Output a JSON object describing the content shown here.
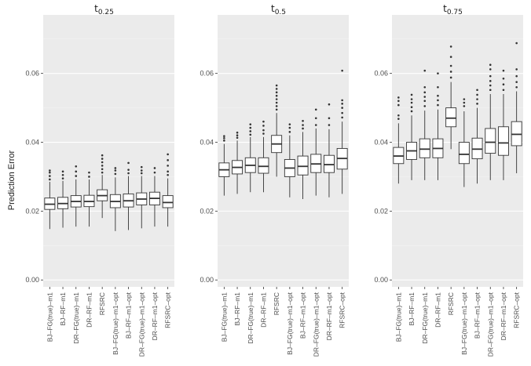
{
  "chart_data": {
    "type": "boxplot",
    "ylabel": "Prediction Error",
    "ylim": [
      -0.002,
      0.077
    ],
    "yticks": [
      0.0,
      0.02,
      0.04,
      0.06
    ],
    "ytick_labels": [
      "0.00",
      "0.02",
      "0.04",
      "0.06"
    ],
    "categories": [
      "BJ–FG(true)–m1",
      "BJ–RF–m1",
      "DR–FG(true)–m1",
      "DR–RF–m1",
      "RFSRC",
      "BJ–FG(true)–m1–opt",
      "BJ–RF–m1–opt",
      "DR–FG(true)–m1–opt",
      "DR–RF–m1–opt",
      "RFSRC–opt"
    ],
    "facets": [
      {
        "title_main": "t",
        "title_sub": "0.25",
        "boxes": [
          {
            "min": 0.0148,
            "q1": 0.0205,
            "median": 0.022,
            "q3": 0.0238,
            "max": 0.0285,
            "outliers": [
              0.0292,
              0.0302,
              0.0312,
              0.0318
            ]
          },
          {
            "min": 0.0152,
            "q1": 0.0207,
            "median": 0.0222,
            "q3": 0.024,
            "max": 0.0288,
            "outliers": [
              0.0295,
              0.0305,
              0.0315
            ]
          },
          {
            "min": 0.0155,
            "q1": 0.0212,
            "median": 0.0228,
            "q3": 0.0245,
            "max": 0.0292,
            "outliers": [
              0.0302,
              0.0315,
              0.033
            ]
          },
          {
            "min": 0.0155,
            "q1": 0.0213,
            "median": 0.0228,
            "q3": 0.0246,
            "max": 0.0292,
            "outliers": [
              0.03,
              0.0312
            ]
          },
          {
            "min": 0.018,
            "q1": 0.023,
            "median": 0.0245,
            "q3": 0.0262,
            "max": 0.0305,
            "outliers": [
              0.0312,
              0.0322,
              0.0332,
              0.0342,
              0.0352,
              0.0362
            ]
          },
          {
            "min": 0.0142,
            "q1": 0.021,
            "median": 0.0228,
            "q3": 0.0248,
            "max": 0.0298,
            "outliers": [
              0.0308,
              0.0318,
              0.0325
            ]
          },
          {
            "min": 0.0145,
            "q1": 0.0212,
            "median": 0.023,
            "q3": 0.025,
            "max": 0.0302,
            "outliers": [
              0.031,
              0.032,
              0.034
            ]
          },
          {
            "min": 0.015,
            "q1": 0.0218,
            "median": 0.0235,
            "q3": 0.0253,
            "max": 0.0302,
            "outliers": [
              0.031,
              0.0318,
              0.0328
            ]
          },
          {
            "min": 0.0155,
            "q1": 0.0218,
            "median": 0.0237,
            "q3": 0.0255,
            "max": 0.0302,
            "outliers": [
              0.0312,
              0.0325
            ]
          },
          {
            "min": 0.0155,
            "q1": 0.021,
            "median": 0.0225,
            "q3": 0.0245,
            "max": 0.0295,
            "outliers": [
              0.0305,
              0.0315,
              0.0332,
              0.0348,
              0.0365
            ]
          }
        ]
      },
      {
        "title_main": "t",
        "title_sub": "0.5",
        "boxes": [
          {
            "min": 0.0245,
            "q1": 0.03,
            "median": 0.032,
            "q3": 0.034,
            "max": 0.0395,
            "outliers": [
              0.0405,
              0.0412,
              0.0418
            ]
          },
          {
            "min": 0.025,
            "q1": 0.0308,
            "median": 0.0327,
            "q3": 0.0347,
            "max": 0.0405,
            "outliers": [
              0.0413,
              0.042,
              0.0428
            ]
          },
          {
            "min": 0.0255,
            "q1": 0.0312,
            "median": 0.0333,
            "q3": 0.0355,
            "max": 0.0415,
            "outliers": [
              0.0422,
              0.0432,
              0.0442,
              0.0452
            ]
          },
          {
            "min": 0.0255,
            "q1": 0.031,
            "median": 0.033,
            "q3": 0.0355,
            "max": 0.0415,
            "outliers": [
              0.0425,
              0.0435,
              0.0448,
              0.046
            ]
          },
          {
            "min": 0.03,
            "q1": 0.037,
            "median": 0.0395,
            "q3": 0.042,
            "max": 0.0485,
            "outliers": [
              0.0495,
              0.0505,
              0.0515,
              0.0525,
              0.0535,
              0.0545,
              0.0555,
              0.0565
            ]
          },
          {
            "min": 0.024,
            "q1": 0.03,
            "median": 0.0325,
            "q3": 0.035,
            "max": 0.042,
            "outliers": [
              0.043,
              0.0442,
              0.0452
            ]
          },
          {
            "min": 0.0235,
            "q1": 0.0305,
            "median": 0.033,
            "q3": 0.036,
            "max": 0.043,
            "outliers": [
              0.044,
              0.045,
              0.0462
            ]
          },
          {
            "min": 0.0245,
            "q1": 0.0312,
            "median": 0.0337,
            "q3": 0.0365,
            "max": 0.044,
            "outliers": [
              0.045,
              0.047,
              0.0495
            ]
          },
          {
            "min": 0.024,
            "q1": 0.0312,
            "median": 0.0335,
            "q3": 0.0362,
            "max": 0.0438,
            "outliers": [
              0.045,
              0.047,
              0.051
            ]
          },
          {
            "min": 0.025,
            "q1": 0.0322,
            "median": 0.0353,
            "q3": 0.0382,
            "max": 0.046,
            "outliers": [
              0.0472,
              0.0485,
              0.05,
              0.0512,
              0.0522,
              0.0608
            ]
          }
        ]
      },
      {
        "title_main": "t",
        "title_sub": "0.75",
        "boxes": [
          {
            "min": 0.028,
            "q1": 0.0338,
            "median": 0.036,
            "q3": 0.0385,
            "max": 0.0455,
            "outliers": [
              0.0468,
              0.0478,
              0.0508,
              0.052,
              0.053
            ]
          },
          {
            "min": 0.029,
            "q1": 0.035,
            "median": 0.0375,
            "q3": 0.04,
            "max": 0.0478,
            "outliers": [
              0.049,
              0.0502,
              0.0515,
              0.0525,
              0.0538
            ]
          },
          {
            "min": 0.029,
            "q1": 0.0355,
            "median": 0.038,
            "q3": 0.041,
            "max": 0.0492,
            "outliers": [
              0.0505,
              0.052,
              0.0532,
              0.0545,
              0.056,
              0.0608
            ]
          },
          {
            "min": 0.029,
            "q1": 0.0355,
            "median": 0.0382,
            "q3": 0.041,
            "max": 0.0495,
            "outliers": [
              0.0508,
              0.0522,
              0.0535,
              0.056,
              0.06
            ]
          },
          {
            "min": 0.038,
            "q1": 0.0445,
            "median": 0.047,
            "q3": 0.05,
            "max": 0.0575,
            "outliers": [
              0.0588,
              0.0605,
              0.0622,
              0.0648,
              0.0678
            ]
          },
          {
            "min": 0.027,
            "q1": 0.0338,
            "median": 0.0365,
            "q3": 0.04,
            "max": 0.049,
            "outliers": [
              0.0505,
              0.0515,
              0.0525
            ]
          },
          {
            "min": 0.028,
            "q1": 0.0352,
            "median": 0.038,
            "q3": 0.0412,
            "max": 0.05,
            "outliers": [
              0.0512,
              0.0525,
              0.0538,
              0.0552
            ]
          },
          {
            "min": 0.029,
            "q1": 0.0368,
            "median": 0.04,
            "q3": 0.044,
            "max": 0.054,
            "outliers": [
              0.0552,
              0.0565,
              0.0578,
              0.0592,
              0.0612,
              0.0625
            ]
          },
          {
            "min": 0.029,
            "q1": 0.0362,
            "median": 0.0398,
            "q3": 0.0445,
            "max": 0.054,
            "outliers": [
              0.0552,
              0.0568,
              0.0585,
              0.0608
            ]
          },
          {
            "min": 0.031,
            "q1": 0.039,
            "median": 0.0423,
            "q3": 0.046,
            "max": 0.0548,
            "outliers": [
              0.056,
              0.0575,
              0.0592,
              0.0612,
              0.0688
            ]
          }
        ]
      }
    ],
    "colors": {
      "panel_bg": "#ebebeb",
      "grid_major": "#ffffff",
      "grid_minor": "#f4f4f4",
      "box_fill": "#ffffff",
      "box_stroke": "#333333",
      "outlier": "#333333"
    }
  }
}
